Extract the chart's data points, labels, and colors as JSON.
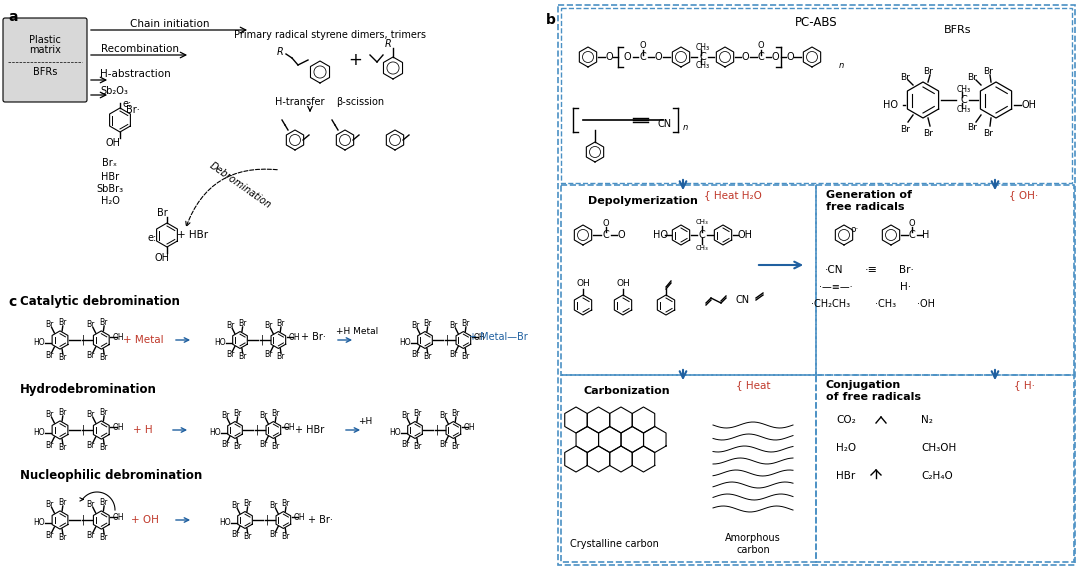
{
  "bg_color": "#ffffff",
  "dashed_border_color": "#4a90c4",
  "arrow_color_blue": "#2060a0",
  "arrow_color_red": "#c0392b",
  "text_color": "#1a1a1a",
  "red_text_color": "#c0392b",
  "blue_text_color": "#2060a0",
  "label_a": "a",
  "label_b": "b",
  "label_c": "c",
  "title_font_size": 9,
  "body_font_size": 7.5
}
